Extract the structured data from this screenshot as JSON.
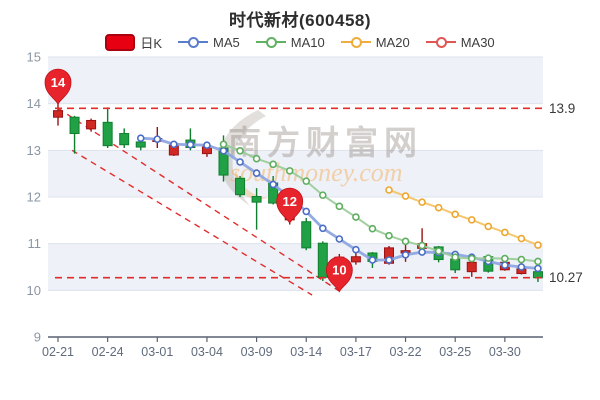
{
  "title": "时代新材(600458)",
  "legend": [
    {
      "label": "日K",
      "type": "rect",
      "color": "#e60012",
      "border": "#aa0010"
    },
    {
      "label": "MA5",
      "type": "line",
      "color": "#5b7ccd"
    },
    {
      "label": "MA10",
      "type": "line",
      "color": "#62b163"
    },
    {
      "label": "MA20",
      "type": "line",
      "color": "#eead3c"
    },
    {
      "label": "MA30",
      "type": "line",
      "color": "#e25555"
    }
  ],
  "watermark": {
    "cn": "南方财富网",
    "en": "southmoney.com"
  },
  "chart_data": {
    "type": "candlestick",
    "title": "时代新材(600458)",
    "ylim": [
      9,
      15
    ],
    "y_ticks": [
      9,
      10,
      11,
      12,
      13,
      14,
      15
    ],
    "x_tick_labels": [
      "02-21",
      "02-24",
      "03-01",
      "03-04",
      "03-09",
      "03-14",
      "03-17",
      "03-22",
      "03-25",
      "03-30"
    ],
    "x_tick_indices": [
      0,
      3,
      6,
      9,
      12,
      15,
      18,
      21,
      24,
      27
    ],
    "dates": [
      "02-21",
      "02-22",
      "02-23",
      "02-24",
      "02-25",
      "02-28",
      "03-01",
      "03-02",
      "03-03",
      "03-04",
      "03-07",
      "03-08",
      "03-09",
      "03-10",
      "03-11",
      "03-14",
      "03-15",
      "03-16",
      "03-17",
      "03-18",
      "03-21",
      "03-22",
      "03-23",
      "03-24",
      "03-25",
      "03-28",
      "03-29",
      "03-30",
      "03-31",
      "04-01"
    ],
    "candles": [
      {
        "o": 13.71,
        "c": 13.85,
        "h": 14.0,
        "l": 13.53
      },
      {
        "o": 13.71,
        "c": 13.36,
        "h": 13.74,
        "l": 12.93
      },
      {
        "o": 13.46,
        "c": 13.64,
        "h": 13.68,
        "l": 13.4
      },
      {
        "o": 13.6,
        "c": 13.1,
        "h": 13.92,
        "l": 13.05
      },
      {
        "o": 13.36,
        "c": 13.12,
        "h": 13.47,
        "l": 13.05
      },
      {
        "o": 13.18,
        "c": 13.07,
        "h": 13.24,
        "l": 13.0
      },
      {
        "o": 13.19,
        "c": 13.25,
        "h": 13.5,
        "l": 13.05
      },
      {
        "o": 12.9,
        "c": 13.11,
        "h": 13.15,
        "l": 12.88
      },
      {
        "o": 13.22,
        "c": 13.06,
        "h": 13.47,
        "l": 13.0
      },
      {
        "o": 12.93,
        "c": 13.07,
        "h": 13.18,
        "l": 12.86
      },
      {
        "o": 13.05,
        "c": 12.47,
        "h": 13.32,
        "l": 12.33
      },
      {
        "o": 12.4,
        "c": 12.05,
        "h": 12.45,
        "l": 12.0
      },
      {
        "o": 12.01,
        "c": 11.89,
        "h": 12.19,
        "l": 11.3
      },
      {
        "o": 12.3,
        "c": 11.87,
        "h": 12.45,
        "l": 11.84
      },
      {
        "o": 11.51,
        "c": 11.72,
        "h": 11.78,
        "l": 11.41
      },
      {
        "o": 11.47,
        "c": 10.91,
        "h": 11.55,
        "l": 10.86
      },
      {
        "o": 11.01,
        "c": 10.28,
        "h": 11.05,
        "l": 10.2
      },
      {
        "o": 10.6,
        "c": 10.71,
        "h": 10.78,
        "l": 10.05
      },
      {
        "o": 10.61,
        "c": 10.72,
        "h": 10.93,
        "l": 10.55
      },
      {
        "o": 10.8,
        "c": 10.62,
        "h": 10.82,
        "l": 10.48
      },
      {
        "o": 10.58,
        "c": 10.91,
        "h": 10.95,
        "l": 10.55
      },
      {
        "o": 10.8,
        "c": 10.85,
        "h": 11.08,
        "l": 10.61
      },
      {
        "o": 10.9,
        "c": 11.0,
        "h": 11.33,
        "l": 10.85
      },
      {
        "o": 10.93,
        "c": 10.66,
        "h": 10.95,
        "l": 10.6
      },
      {
        "o": 10.67,
        "c": 10.44,
        "h": 10.8,
        "l": 10.37
      },
      {
        "o": 10.4,
        "c": 10.6,
        "h": 10.65,
        "l": 10.29
      },
      {
        "o": 10.72,
        "c": 10.41,
        "h": 10.75,
        "l": 10.38
      },
      {
        "o": 10.44,
        "c": 10.6,
        "h": 10.65,
        "l": 10.42
      },
      {
        "o": 10.36,
        "c": 10.46,
        "h": 10.68,
        "l": 10.34
      },
      {
        "o": 10.4,
        "c": 10.27,
        "h": 10.45,
        "l": 10.18
      }
    ],
    "series": [
      {
        "name": "MA5",
        "start": 5,
        "values": [
          13.26,
          13.24,
          13.13,
          13.12,
          13.11,
          12.99,
          12.75,
          12.51,
          12.27,
          12.0,
          11.69,
          11.33,
          11.1,
          10.87,
          10.65,
          10.65,
          10.76,
          10.82,
          10.81,
          10.77,
          10.71,
          10.62,
          10.54,
          10.5,
          10.47
        ]
      },
      {
        "name": "MA10",
        "start": 10,
        "values": [
          13.13,
          12.99,
          12.82,
          12.7,
          12.56,
          12.34,
          12.04,
          11.8,
          11.57,
          11.32,
          11.17,
          11.05,
          10.96,
          10.84,
          10.71,
          10.68,
          10.69,
          10.68,
          10.66,
          10.62
        ]
      },
      {
        "name": "MA20",
        "start": 20,
        "values": [
          12.15,
          12.02,
          11.89,
          11.77,
          11.63,
          11.51,
          11.37,
          11.24,
          11.11,
          10.97
        ]
      },
      {
        "name": "MA30",
        "start": 30,
        "values": []
      }
    ],
    "markers": [
      {
        "label": "14",
        "at": [
          0,
          13.99
        ]
      },
      {
        "label": "12",
        "at": [
          14,
          11.44
        ]
      },
      {
        "label": "10",
        "at": [
          17,
          9.97
        ]
      }
    ],
    "ref_lines": [
      {
        "value": 13.9,
        "label": "13.9"
      },
      {
        "value": 10.27,
        "label": "10.27"
      }
    ],
    "trend_lines": [
      {
        "from": [
          0,
          13.9
        ],
        "to": [
          17.1,
          9.96
        ]
      },
      {
        "from": [
          0.85,
          13.0
        ],
        "to": [
          15.35,
          9.9
        ]
      }
    ],
    "colors": {
      "up": "#d02823",
      "up_border": "#9c1212",
      "down": "#21a146",
      "down_border": "#0f7e2d",
      "ma5_line": "#8da5e0",
      "ma5_dot": "#4a6dc6",
      "ma10_line": "#9ccc9b",
      "ma10_dot": "#5fae60",
      "ma20_line": "#f4c469",
      "ma20_dot": "#eda62f",
      "marker_pin": "#e7242b",
      "dashed": "#e22c2c",
      "stripe": "#eef1f7",
      "grid": "#dde2ec",
      "axis": "#5a6270",
      "y_label": "#8c96a3",
      "x_label": "#5f6b7c",
      "ref_label": "#383838"
    }
  }
}
